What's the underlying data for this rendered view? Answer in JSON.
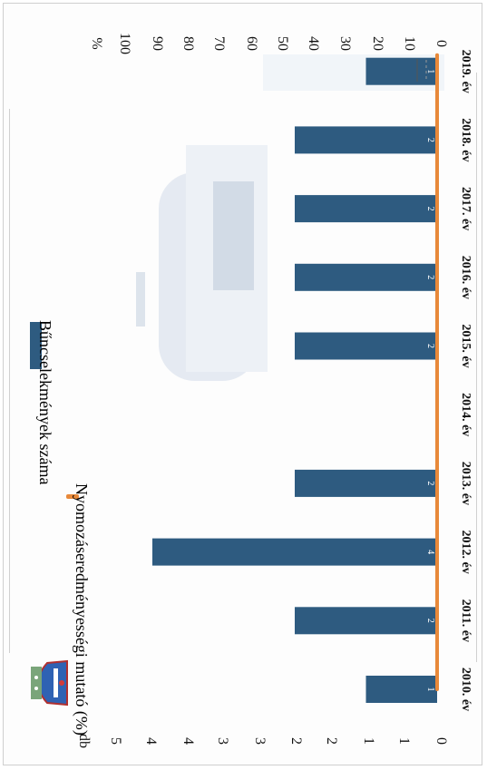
{
  "chart_data": {
    "type": "bar",
    "categories": [
      "2010. év",
      "2011. év",
      "2012. év",
      "2013. év",
      "2014. év",
      "2015. év",
      "2016. év",
      "2017. év",
      "2018. év",
      "2019. év"
    ],
    "series": [
      {
        "name": "Bűncselekmények száma",
        "values": [
          1,
          2,
          4,
          2,
          null,
          2,
          2,
          2,
          2,
          1
        ],
        "data_labels": [
          "1",
          "2",
          "4",
          "2",
          "",
          "2",
          "2",
          "2",
          "2",
          "1"
        ],
        "color": "#2e5b80",
        "axis": "left"
      },
      {
        "name": "Nyomozáseredményességi mutató (%)",
        "values": [
          0,
          0,
          0,
          0,
          0,
          0,
          0,
          0,
          0,
          0
        ],
        "color": "#e8893a",
        "axis": "right"
      }
    ],
    "left_axis": {
      "unit": "db",
      "ticks": [
        "0",
        "1",
        "1",
        "2",
        "2",
        "3",
        "3",
        "4",
        "4",
        "5"
      ],
      "ylim": [
        0,
        5
      ]
    },
    "right_axis": {
      "unit": "%",
      "ticks": [
        "0",
        "10",
        "20",
        "30",
        "40",
        "50",
        "60",
        "70",
        "80",
        "90",
        "100"
      ],
      "ylim": [
        0,
        100
      ]
    },
    "legend_position": "top",
    "grid": false,
    "orientation": "rotated 90° clockwise"
  },
  "colors": {
    "bar": "#2e5b80",
    "line": "#e8893a",
    "watermark": "#b9c7d9"
  },
  "icons": [
    "police-emblem-icon"
  ]
}
